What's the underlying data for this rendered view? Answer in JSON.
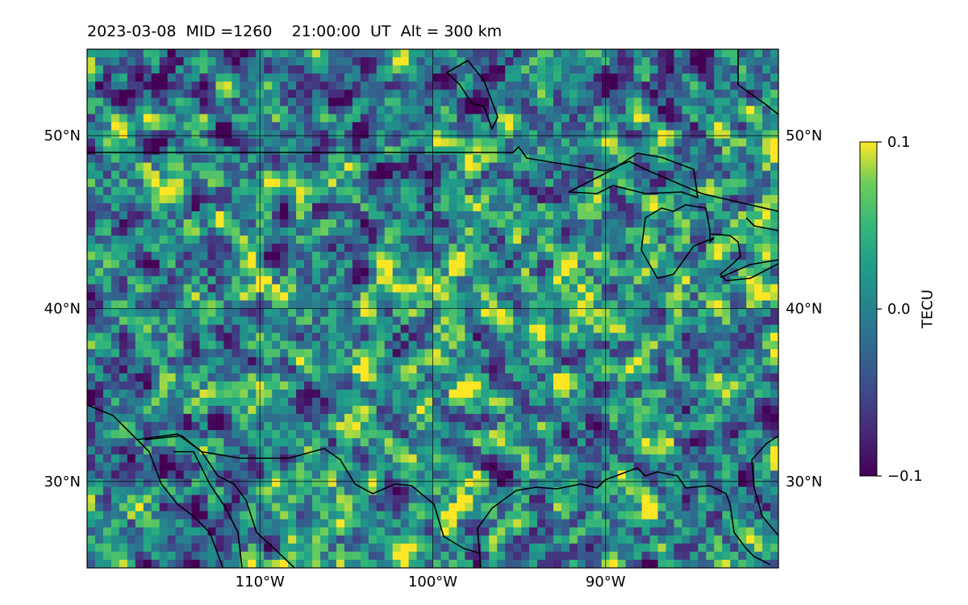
{
  "title": "2023-03-08  MID =1260    21:00:00  UT  Alt = 300 km",
  "map": {
    "lat_range": [
      25,
      55
    ],
    "lon_range": [
      -120,
      -80
    ],
    "lat_ticks": [
      {
        "value": 50,
        "label": "50°N"
      },
      {
        "value": 40,
        "label": "40°N"
      },
      {
        "value": 30,
        "label": "30°N"
      }
    ],
    "lon_ticks": [
      {
        "value": -110,
        "label": "110°W"
      },
      {
        "value": -100,
        "label": "100°W"
      },
      {
        "value": -90,
        "label": "90°W"
      }
    ],
    "coastlines_shown": true,
    "grid": true
  },
  "colorbar": {
    "label": "TECU",
    "colormap": "viridis",
    "min": -0.1,
    "max": 0.1,
    "ticks": [
      {
        "value": 0.1,
        "label": "0.1"
      },
      {
        "value": 0.0,
        "label": "0.0"
      },
      {
        "value": -0.1,
        "label": "−0.1"
      }
    ]
  }
}
